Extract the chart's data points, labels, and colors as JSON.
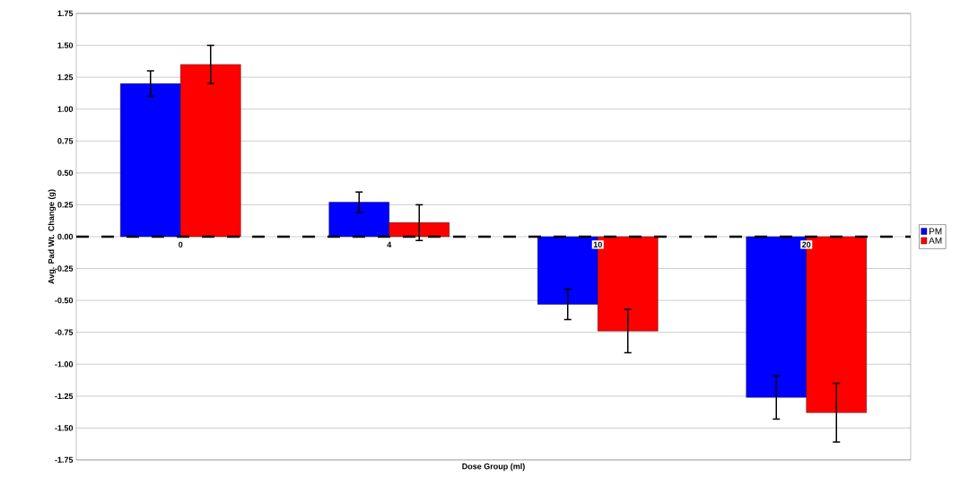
{
  "chart_data": {
    "type": "bar",
    "xlabel": "Dose Group (ml)",
    "ylabel": "Avg. Pad Wt. Change (g)",
    "categories": [
      "0",
      "4",
      "10",
      "20"
    ],
    "series": [
      {
        "name": "PM",
        "color": "#0000ff",
        "values": [
          1.2,
          0.27,
          -0.53,
          -1.26
        ],
        "errors": [
          0.1,
          0.08,
          0.12,
          0.17
        ]
      },
      {
        "name": "AM",
        "color": "#ff0000",
        "values": [
          1.35,
          0.11,
          -0.74,
          -1.38
        ],
        "errors": [
          0.15,
          0.14,
          0.17,
          0.23
        ]
      }
    ],
    "ylim": [
      -1.75,
      1.75
    ],
    "yticks": [
      {
        "value": -1.75,
        "label": "-1.75"
      },
      {
        "value": -1.5,
        "label": "-1.50"
      },
      {
        "value": -1.25,
        "label": "-1.25"
      },
      {
        "value": -1,
        "label": "-1.00"
      },
      {
        "value": -0.75,
        "label": "-0.75"
      },
      {
        "value": -0.5,
        "label": "-0.50"
      },
      {
        "value": -0.25,
        "label": "-0.25"
      },
      {
        "value": 0,
        "label": "0.00"
      },
      {
        "value": 0.25,
        "label": "0.25"
      },
      {
        "value": 0.5,
        "label": "0.50"
      },
      {
        "value": 0.75,
        "label": "0.75"
      },
      {
        "value": 1,
        "label": "1.00"
      },
      {
        "value": 1.25,
        "label": "1.25"
      },
      {
        "value": 1.5,
        "label": "1.50"
      },
      {
        "value": 1.75,
        "label": "1.75"
      }
    ],
    "ref_lines": [
      {
        "axis": "y",
        "value": 0,
        "color": "#000000",
        "line_style": "dashed"
      }
    ],
    "grid": "y",
    "legend": "right"
  }
}
